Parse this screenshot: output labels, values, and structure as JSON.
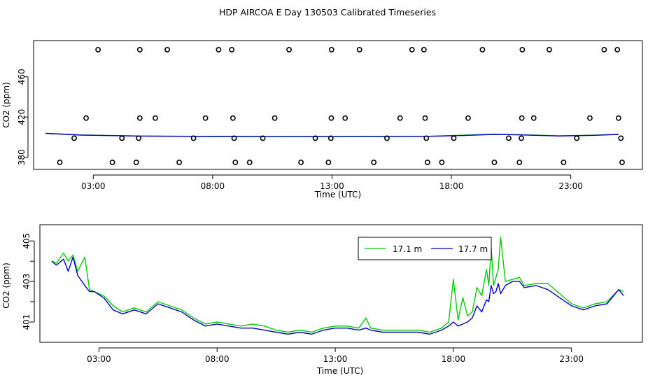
{
  "title": "HDP AIRCOA E  Day 130503  Calibrated Timeseries",
  "colors": {
    "green": "#00cc00",
    "blue": "#0000cc",
    "axis": "#000000"
  },
  "chart_data": [
    {
      "type": "scatter",
      "xlabel": "Time (UTC)",
      "ylabel": "CO2 (ppm)",
      "xlim": [
        0.5,
        26.0
      ],
      "ylim": [
        368,
        496
      ],
      "x_ticks": [
        3,
        8,
        13,
        18,
        23
      ],
      "x_tick_labels": [
        "03:00",
        "08:00",
        "13:00",
        "18:00",
        "23:00"
      ],
      "y_ticks": [
        380,
        420,
        460
      ],
      "y_tick_labels": [
        "380",
        "420",
        "460"
      ],
      "calibration_points": [
        [
          1.6,
          375
        ],
        [
          2.2,
          399
        ],
        [
          2.7,
          419
        ],
        [
          3.2,
          487
        ],
        [
          3.8,
          375
        ],
        [
          4.2,
          399
        ],
        [
          4.8,
          375
        ],
        [
          4.9,
          399
        ],
        [
          4.95,
          419
        ],
        [
          4.95,
          487
        ],
        [
          5.6,
          419
        ],
        [
          6.1,
          487
        ],
        [
          6.6,
          375
        ],
        [
          7.2,
          399
        ],
        [
          7.7,
          419
        ],
        [
          8.25,
          487
        ],
        [
          8.8,
          487
        ],
        [
          8.85,
          419
        ],
        [
          8.9,
          399
        ],
        [
          8.95,
          375
        ],
        [
          9.55,
          375
        ],
        [
          10.1,
          399
        ],
        [
          10.6,
          419
        ],
        [
          11.2,
          487
        ],
        [
          11.7,
          375
        ],
        [
          12.3,
          399
        ],
        [
          12.85,
          375
        ],
        [
          12.95,
          399
        ],
        [
          12.97,
          419
        ],
        [
          12.98,
          487
        ],
        [
          13.55,
          419
        ],
        [
          14.15,
          487
        ],
        [
          14.75,
          375
        ],
        [
          15.3,
          399
        ],
        [
          15.85,
          419
        ],
        [
          16.35,
          487
        ],
        [
          16.85,
          487
        ],
        [
          16.9,
          419
        ],
        [
          16.95,
          399
        ],
        [
          17.0,
          375
        ],
        [
          17.6,
          375
        ],
        [
          18.1,
          399
        ],
        [
          18.7,
          419
        ],
        [
          19.3,
          487
        ],
        [
          19.8,
          375
        ],
        [
          20.4,
          399
        ],
        [
          20.85,
          375
        ],
        [
          20.93,
          399
        ],
        [
          20.95,
          419
        ],
        [
          20.97,
          487
        ],
        [
          21.45,
          419
        ],
        [
          22.1,
          487
        ],
        [
          22.7,
          375
        ],
        [
          23.25,
          399
        ],
        [
          23.8,
          419
        ],
        [
          24.4,
          487
        ],
        [
          24.95,
          487
        ],
        [
          25.0,
          419
        ],
        [
          25.1,
          399
        ],
        [
          25.15,
          375
        ]
      ],
      "series": [
        {
          "name": "",
          "color": "green",
          "x": [
            1.0,
            2.5,
            5.0,
            8.0,
            11.0,
            14.0,
            17.0,
            18.5,
            19.8,
            20.8,
            22.5,
            24.0,
            25.0
          ],
          "values": [
            403.8,
            402.2,
            401.2,
            400.8,
            400.6,
            400.7,
            400.9,
            402.0,
            403.0,
            402.5,
            401.4,
            402.0,
            402.9
          ]
        },
        {
          "name": "",
          "color": "blue",
          "x": [
            1.0,
            2.5,
            5.0,
            8.0,
            11.0,
            14.0,
            17.0,
            18.5,
            19.8,
            20.8,
            22.5,
            24.0,
            25.0
          ],
          "values": [
            403.8,
            402.1,
            401.1,
            400.7,
            400.5,
            400.6,
            400.8,
            401.7,
            402.8,
            402.4,
            401.2,
            401.9,
            402.8
          ]
        }
      ]
    },
    {
      "type": "line",
      "xlabel": "Time (UTC)",
      "ylabel": "CO2 (ppm)",
      "xlim": [
        0.5,
        26.0
      ],
      "ylim": [
        400.0,
        405.8
      ],
      "x_ticks": [
        3,
        8,
        13,
        18,
        23
      ],
      "x_tick_labels": [
        "03:00",
        "08:00",
        "13:00",
        "18:00",
        "23:00"
      ],
      "y_ticks": [
        401,
        402,
        403,
        404,
        405
      ],
      "y_tick_labels": [
        "401",
        "",
        "403",
        "",
        "405"
      ],
      "legend_position": "top-right",
      "series": [
        {
          "name": "17.1 m",
          "color": "green",
          "x": [
            1.0,
            1.2,
            1.5,
            1.7,
            1.9,
            2.1,
            2.4,
            2.6,
            2.8,
            3.2,
            3.6,
            4.0,
            4.5,
            5.0,
            5.5,
            6.0,
            6.5,
            7.0,
            7.5,
            8.0,
            8.5,
            9.0,
            9.5,
            10.0,
            10.5,
            11.0,
            11.5,
            12.0,
            12.5,
            13.0,
            13.5,
            14.0,
            14.3,
            14.5,
            15.0,
            15.5,
            16.0,
            16.5,
            17.0,
            17.5,
            17.8,
            18.0,
            18.2,
            18.4,
            18.6,
            18.8,
            19.0,
            19.2,
            19.4,
            19.5,
            19.6,
            19.7,
            19.8,
            19.9,
            20.0,
            20.2,
            20.5,
            20.8,
            21.0,
            21.5,
            22.0,
            22.5,
            23.0,
            23.5,
            24.0,
            24.5,
            25.0,
            25.2
          ],
          "values": [
            404.0,
            403.9,
            404.4,
            404.0,
            404.3,
            403.5,
            404.2,
            402.6,
            402.5,
            402.3,
            401.8,
            401.5,
            401.7,
            401.5,
            402.0,
            401.8,
            401.6,
            401.2,
            400.9,
            401.0,
            400.9,
            400.8,
            400.9,
            400.8,
            400.6,
            400.5,
            400.6,
            400.5,
            400.7,
            400.8,
            400.8,
            400.7,
            401.2,
            400.7,
            400.6,
            400.6,
            400.6,
            400.6,
            400.5,
            400.7,
            401.0,
            403.1,
            401.1,
            402.2,
            401.3,
            401.5,
            402.7,
            402.3,
            403.6,
            402.8,
            404.7,
            402.8,
            403.2,
            403.6,
            405.2,
            403.0,
            403.1,
            403.2,
            402.8,
            402.9,
            402.9,
            402.4,
            401.9,
            401.7,
            401.9,
            402.0,
            402.6,
            402.5
          ]
        },
        {
          "name": "17.7 m",
          "color": "blue",
          "x": [
            1.0,
            1.2,
            1.5,
            1.7,
            1.9,
            2.1,
            2.4,
            2.6,
            2.8,
            3.2,
            3.6,
            4.0,
            4.5,
            5.0,
            5.5,
            6.0,
            6.5,
            7.0,
            7.5,
            8.0,
            8.5,
            9.0,
            9.5,
            10.0,
            10.5,
            11.0,
            11.5,
            12.0,
            12.5,
            13.0,
            13.5,
            14.0,
            14.3,
            14.5,
            15.0,
            15.5,
            16.0,
            16.5,
            17.0,
            17.5,
            17.8,
            18.0,
            18.2,
            18.4,
            18.6,
            18.8,
            19.0,
            19.2,
            19.4,
            19.5,
            19.6,
            19.7,
            19.8,
            19.9,
            20.0,
            20.2,
            20.5,
            20.8,
            21.0,
            21.5,
            22.0,
            22.5,
            23.0,
            23.5,
            24.0,
            24.5,
            25.0,
            25.2
          ],
          "values": [
            404.0,
            403.8,
            404.1,
            403.5,
            404.2,
            403.3,
            402.8,
            402.5,
            402.5,
            402.2,
            401.6,
            401.4,
            401.6,
            401.4,
            401.9,
            401.7,
            401.5,
            401.1,
            400.8,
            400.9,
            400.8,
            400.7,
            400.7,
            400.6,
            400.5,
            400.4,
            400.5,
            400.4,
            400.6,
            400.7,
            400.7,
            400.6,
            400.7,
            400.6,
            400.5,
            400.5,
            400.5,
            400.5,
            400.4,
            400.6,
            400.8,
            401.0,
            400.8,
            400.9,
            401.0,
            401.2,
            401.8,
            401.5,
            402.1,
            402.0,
            402.8,
            402.4,
            402.5,
            402.9,
            402.4,
            402.8,
            403.0,
            403.0,
            402.7,
            402.8,
            402.6,
            402.2,
            401.8,
            401.6,
            401.8,
            401.9,
            402.6,
            402.3
          ]
        }
      ]
    }
  ]
}
